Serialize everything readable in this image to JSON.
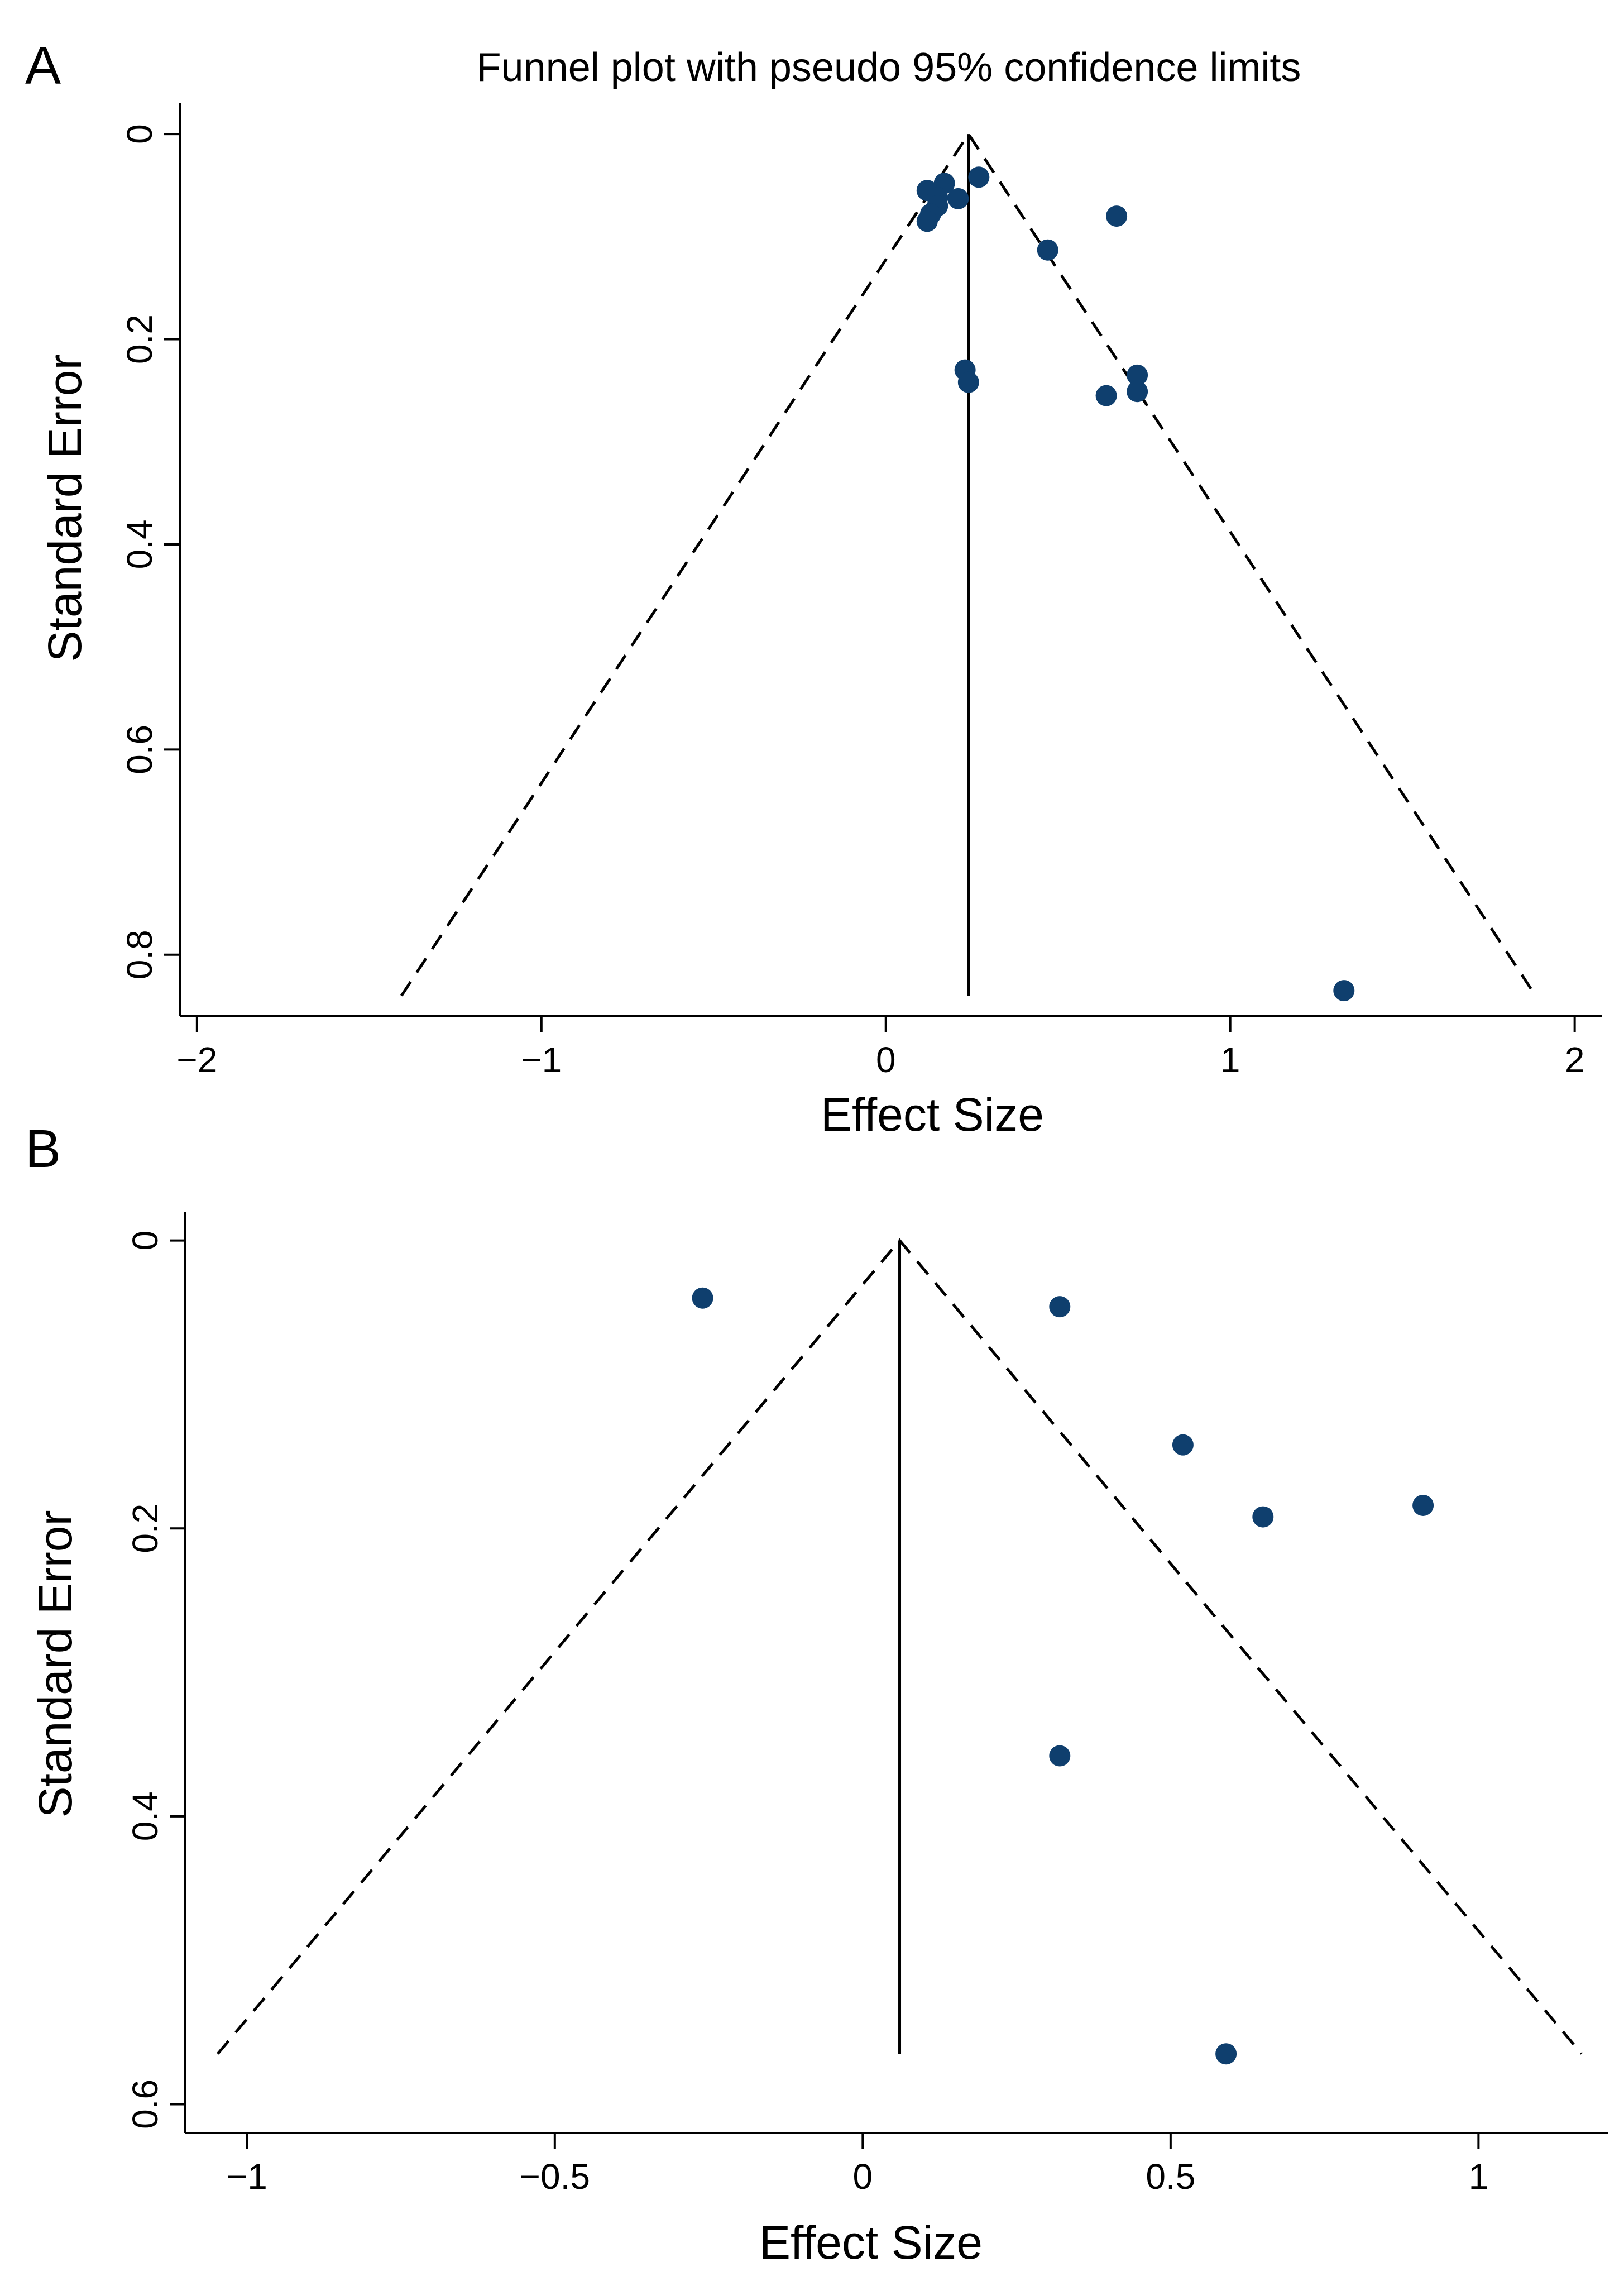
{
  "chart_data": [
    {
      "panel_label": "A",
      "type": "scatter",
      "title": "Funnel plot with pseudo 95% confidence limits",
      "xlabel": "Effect Size",
      "ylabel": "Standard Error",
      "xlim": [
        -2.05,
        2.08
      ],
      "ylim": [
        -0.03,
        0.86
      ],
      "y_reversed": true,
      "xticks": [
        -2,
        -1,
        0,
        1,
        2
      ],
      "xtick_labels": [
        "−2",
        "−1",
        "0",
        "1",
        "2"
      ],
      "yticks": [
        0,
        0.2,
        0.4,
        0.6,
        0.8
      ],
      "ytick_labels": [
        "0",
        "0.2",
        "0.4",
        "0.6",
        "0.8"
      ],
      "pooled_effect": 0.24,
      "ci_max_se": 0.84,
      "point_color": "#0f3f6e",
      "points": [
        {
          "x": 0.27,
          "y": 0.042
        },
        {
          "x": 0.17,
          "y": 0.048
        },
        {
          "x": 0.12,
          "y": 0.055
        },
        {
          "x": 0.15,
          "y": 0.062
        },
        {
          "x": 0.21,
          "y": 0.063
        },
        {
          "x": 0.15,
          "y": 0.07
        },
        {
          "x": 0.13,
          "y": 0.078
        },
        {
          "x": 0.12,
          "y": 0.085
        },
        {
          "x": 0.67,
          "y": 0.08
        },
        {
          "x": 0.47,
          "y": 0.113
        },
        {
          "x": 0.23,
          "y": 0.23
        },
        {
          "x": 0.24,
          "y": 0.242
        },
        {
          "x": 0.73,
          "y": 0.235
        },
        {
          "x": 0.73,
          "y": 0.251
        },
        {
          "x": 0.64,
          "y": 0.255
        },
        {
          "x": 1.33,
          "y": 0.835
        }
      ]
    },
    {
      "panel_label": "B",
      "type": "scatter",
      "title": "",
      "xlabel": "Effect Size",
      "ylabel": "Standard Error",
      "xlim": [
        -1.1,
        1.21
      ],
      "ylim": [
        -0.02,
        0.62
      ],
      "y_reversed": true,
      "xticks": [
        -1,
        -0.5,
        0,
        0.5,
        1
      ],
      "xtick_labels": [
        "−1",
        "−0.5",
        "0",
        "0.5",
        "1"
      ],
      "yticks": [
        0,
        0.2,
        0.4,
        0.6
      ],
      "ytick_labels": [
        "0",
        "0.2",
        "0.4",
        "0.6"
      ],
      "pooled_effect": 0.06,
      "ci_max_se": 0.565,
      "point_color": "#0f3f6e",
      "points": [
        {
          "x": -0.26,
          "y": 0.04
        },
        {
          "x": 0.32,
          "y": 0.046
        },
        {
          "x": 0.52,
          "y": 0.142
        },
        {
          "x": 0.65,
          "y": 0.192
        },
        {
          "x": 0.91,
          "y": 0.184
        },
        {
          "x": 0.32,
          "y": 0.358
        },
        {
          "x": 0.59,
          "y": 0.565
        }
      ]
    }
  ]
}
